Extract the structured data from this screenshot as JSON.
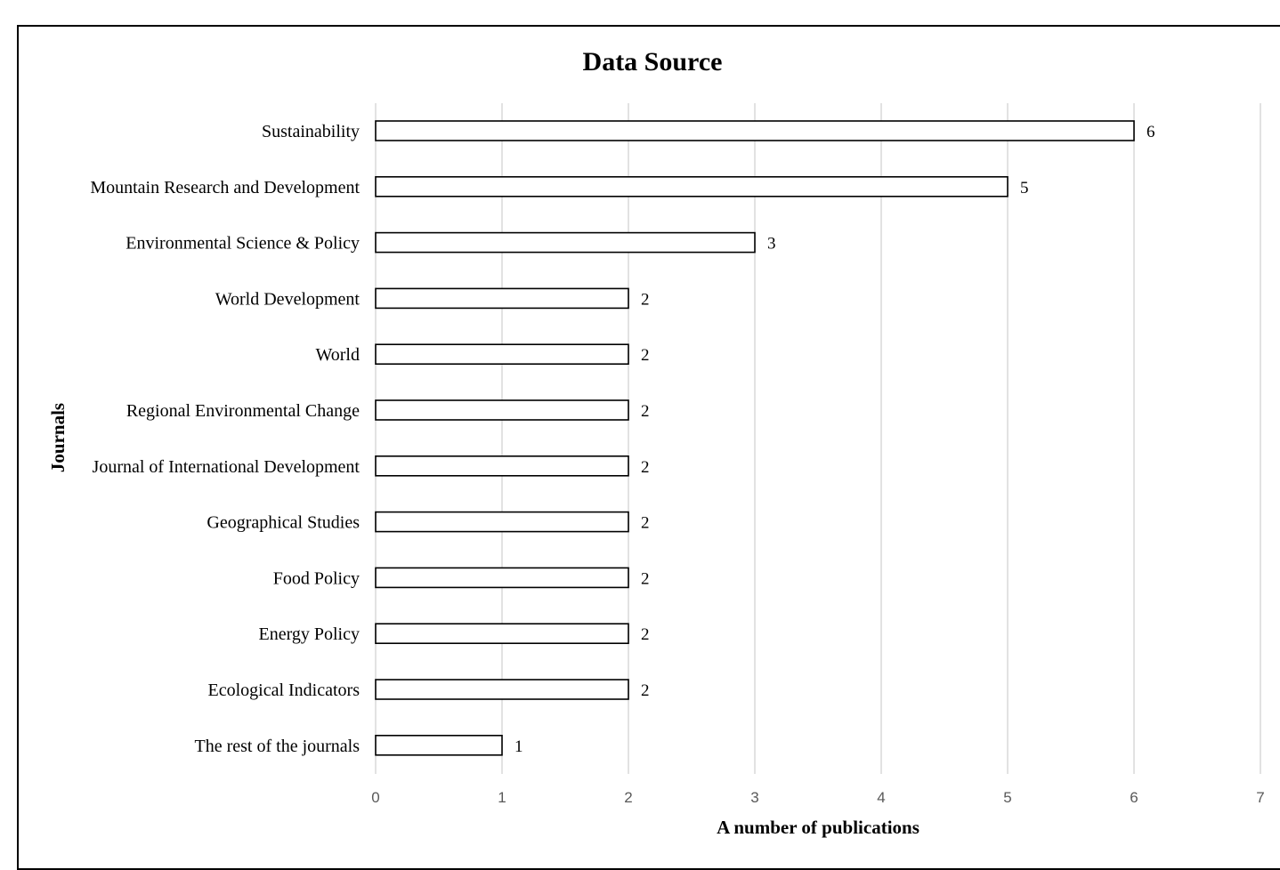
{
  "chart_data": {
    "type": "bar",
    "orientation": "horizontal",
    "title": "Data Source",
    "xlabel": "A number of publications",
    "ylabel": "Journals",
    "xlim": [
      0,
      7
    ],
    "xticks": [
      "0",
      "1",
      "2",
      "3",
      "4",
      "5",
      "6",
      "7"
    ],
    "grid": true,
    "legend": "none",
    "categories": [
      "Sustainability",
      "Mountain Research and Development",
      "Environmental Science & Policy",
      "World Development",
      "World",
      "Regional Environmental Change",
      "Journal of International Development",
      "Geographical Studies",
      "Food Policy",
      "Energy Policy",
      "Ecological Indicators",
      "The rest of the journals"
    ],
    "values": [
      6,
      5,
      3,
      2,
      2,
      2,
      2,
      2,
      2,
      2,
      2,
      1
    ],
    "colors": {
      "bar_fill": "#ffffff",
      "bar_stroke": "#000000",
      "grid": "#d9d9d9",
      "tick_text": "#595959"
    }
  }
}
